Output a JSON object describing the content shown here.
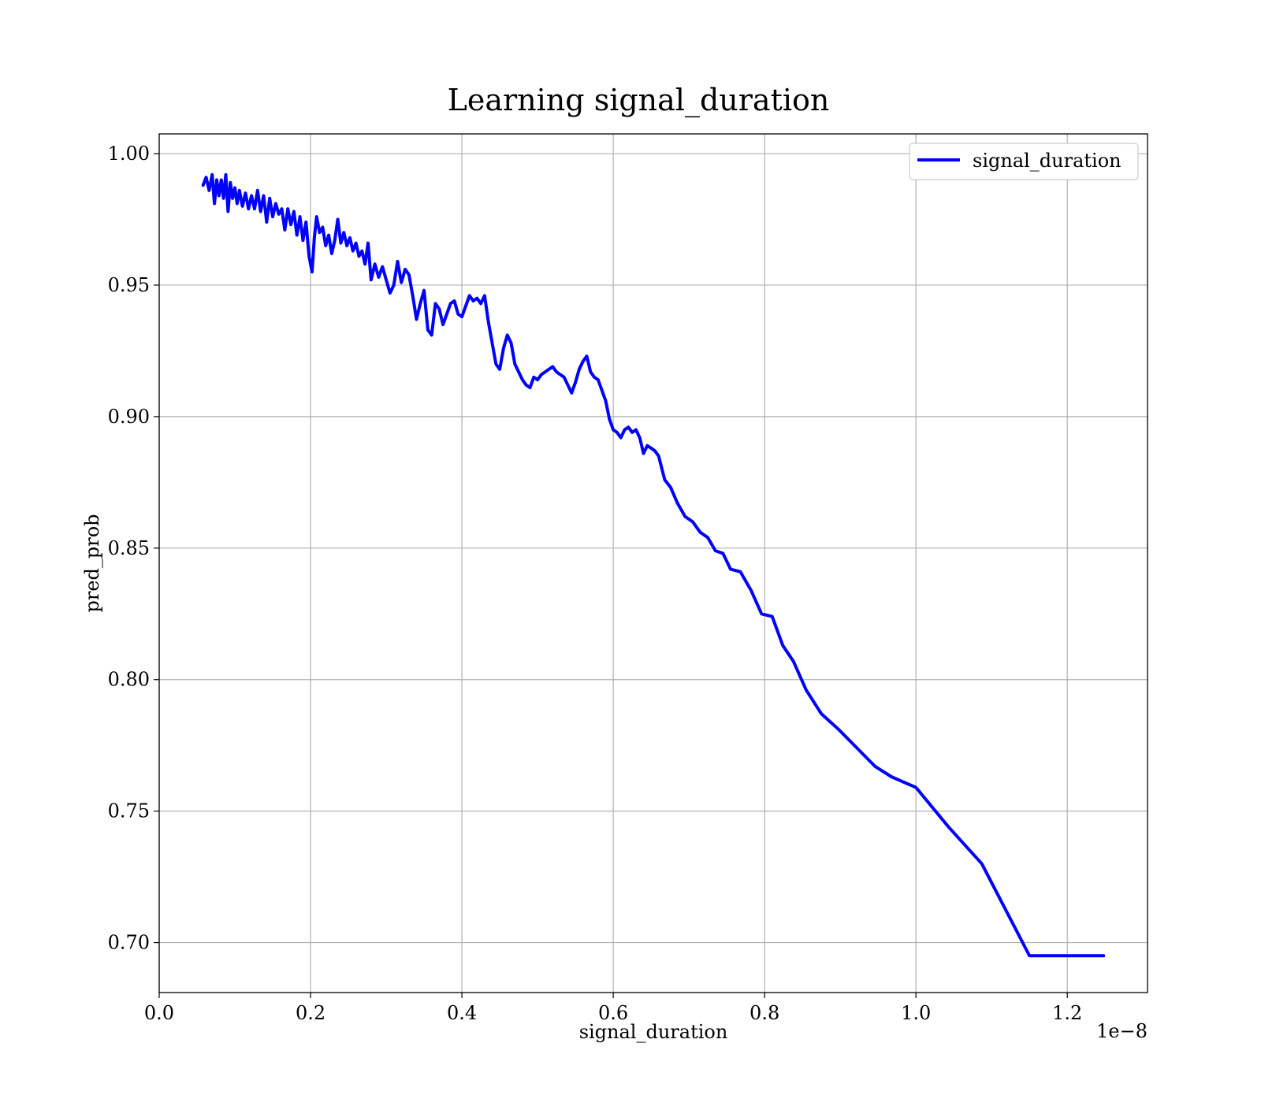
{
  "chart_data": {
    "type": "line",
    "title": "Learning signal_duration",
    "xlabel": "signal_duration",
    "ylabel": "pred_prob",
    "x_offset_text": "1e−8",
    "xlim": [
      0.0,
      1.306e-08
    ],
    "ylim": [
      0.681,
      1.0075
    ],
    "xticks": [
      0.0,
      2e-09,
      4e-09,
      6e-09,
      8e-09,
      1e-08,
      1.2e-08
    ],
    "xtick_labels": [
      "0.0",
      "0.2",
      "0.4",
      "0.6",
      "0.8",
      "1.0",
      "1.2"
    ],
    "yticks": [
      0.7,
      0.75,
      0.8,
      0.85,
      0.9,
      0.95,
      1.0
    ],
    "ytick_labels": [
      "0.70",
      "0.75",
      "0.80",
      "0.85",
      "0.90",
      "0.95",
      "1.00"
    ],
    "grid": true,
    "legend_position": "top-right",
    "series": [
      {
        "name": "signal_duration",
        "color": "#0000ff",
        "x": [
          5.8e-10,
          6.2e-10,
          6.6e-10,
          7e-10,
          7.3e-10,
          7.6e-10,
          7.9e-10,
          8.2e-10,
          8.5e-10,
          8.8e-10,
          9.1e-10,
          9.4e-10,
          9.7e-10,
          1e-09,
          1.03e-09,
          1.06e-09,
          1.1e-09,
          1.14e-09,
          1.18e-09,
          1.22e-09,
          1.26e-09,
          1.3e-09,
          1.34e-09,
          1.38e-09,
          1.42e-09,
          1.46e-09,
          1.5e-09,
          1.54e-09,
          1.58e-09,
          1.62e-09,
          1.66e-09,
          1.7e-09,
          1.74e-09,
          1.78e-09,
          1.82e-09,
          1.86e-09,
          1.9e-09,
          1.94e-09,
          1.98e-09,
          2.02e-09,
          2.05e-09,
          2.08e-09,
          2.12e-09,
          2.16e-09,
          2.2e-09,
          2.24e-09,
          2.28e-09,
          2.32e-09,
          2.36e-09,
          2.4e-09,
          2.44e-09,
          2.48e-09,
          2.52e-09,
          2.56e-09,
          2.6e-09,
          2.64e-09,
          2.68e-09,
          2.72e-09,
          2.76e-09,
          2.8e-09,
          2.85e-09,
          2.9e-09,
          2.95e-09,
          3e-09,
          3.05e-09,
          3.1e-09,
          3.15e-09,
          3.2e-09,
          3.25e-09,
          3.3e-09,
          3.35e-09,
          3.4e-09,
          3.45e-09,
          3.5e-09,
          3.55e-09,
          3.6e-09,
          3.65e-09,
          3.7e-09,
          3.75e-09,
          3.8e-09,
          3.85e-09,
          3.9e-09,
          3.95e-09,
          4e-09,
          4.05e-09,
          4.1e-09,
          4.15e-09,
          4.2e-09,
          4.25e-09,
          4.3e-09,
          4.35e-09,
          4.4e-09,
          4.45e-09,
          4.5e-09,
          4.55e-09,
          4.6e-09,
          4.65e-09,
          4.7e-09,
          4.75e-09,
          4.8e-09,
          4.85e-09,
          4.9e-09,
          4.95e-09,
          5e-09,
          5.05e-09,
          5.1e-09,
          5.15e-09,
          5.2e-09,
          5.25e-09,
          5.3e-09,
          5.35e-09,
          5.4e-09,
          5.45e-09,
          5.5e-09,
          5.55e-09,
          5.6e-09,
          5.65e-09,
          5.7e-09,
          5.75e-09,
          5.8e-09,
          5.85e-09,
          5.9e-09,
          5.95e-09,
          6e-09,
          6.05e-09,
          6.1e-09,
          6.15e-09,
          6.2e-09,
          6.25e-09,
          6.3e-09,
          6.35e-09,
          6.4e-09,
          6.45e-09,
          6.5e-09,
          6.55e-09,
          6.6e-09,
          6.68e-09,
          6.76e-09,
          6.85e-09,
          6.95e-09,
          7.05e-09,
          7.15e-09,
          7.25e-09,
          7.35e-09,
          7.45e-09,
          7.55e-09,
          7.68e-09,
          7.82e-09,
          7.96e-09,
          8.1e-09,
          8.24e-09,
          8.38e-09,
          8.55e-09,
          8.75e-09,
          8.98e-09,
          9.22e-09,
          9.46e-09,
          9.68e-09,
          1e-08,
          1.043e-08,
          1.087e-08,
          1.15e-08,
          1.248e-08
        ],
        "y": [
          0.988,
          0.991,
          0.986,
          0.992,
          0.981,
          0.99,
          0.984,
          0.99,
          0.983,
          0.992,
          0.978,
          0.989,
          0.983,
          0.987,
          0.981,
          0.986,
          0.98,
          0.985,
          0.979,
          0.984,
          0.979,
          0.986,
          0.978,
          0.984,
          0.974,
          0.983,
          0.976,
          0.981,
          0.977,
          0.979,
          0.971,
          0.979,
          0.973,
          0.978,
          0.969,
          0.976,
          0.967,
          0.974,
          0.961,
          0.955,
          0.968,
          0.976,
          0.97,
          0.972,
          0.965,
          0.969,
          0.962,
          0.967,
          0.975,
          0.966,
          0.97,
          0.965,
          0.968,
          0.963,
          0.966,
          0.961,
          0.963,
          0.958,
          0.966,
          0.952,
          0.958,
          0.953,
          0.957,
          0.952,
          0.947,
          0.95,
          0.959,
          0.951,
          0.956,
          0.954,
          0.946,
          0.937,
          0.943,
          0.948,
          0.933,
          0.931,
          0.943,
          0.941,
          0.935,
          0.939,
          0.943,
          0.944,
          0.939,
          0.938,
          0.942,
          0.946,
          0.944,
          0.945,
          0.943,
          0.946,
          0.936,
          0.928,
          0.92,
          0.918,
          0.926,
          0.931,
          0.928,
          0.92,
          0.917,
          0.914,
          0.912,
          0.911,
          0.915,
          0.914,
          0.916,
          0.917,
          0.918,
          0.919,
          0.917,
          0.916,
          0.915,
          0.912,
          0.909,
          0.913,
          0.918,
          0.921,
          0.923,
          0.917,
          0.915,
          0.914,
          0.91,
          0.906,
          0.899,
          0.895,
          0.894,
          0.892,
          0.895,
          0.896,
          0.894,
          0.895,
          0.892,
          0.886,
          0.889,
          0.888,
          0.887,
          0.885,
          0.876,
          0.873,
          0.867,
          0.862,
          0.86,
          0.856,
          0.854,
          0.849,
          0.848,
          0.842,
          0.841,
          0.834,
          0.825,
          0.824,
          0.813,
          0.807,
          0.796,
          0.787,
          0.781,
          0.774,
          0.767,
          0.763,
          0.759,
          0.744,
          0.73,
          0.695,
          0.695
        ]
      }
    ]
  }
}
